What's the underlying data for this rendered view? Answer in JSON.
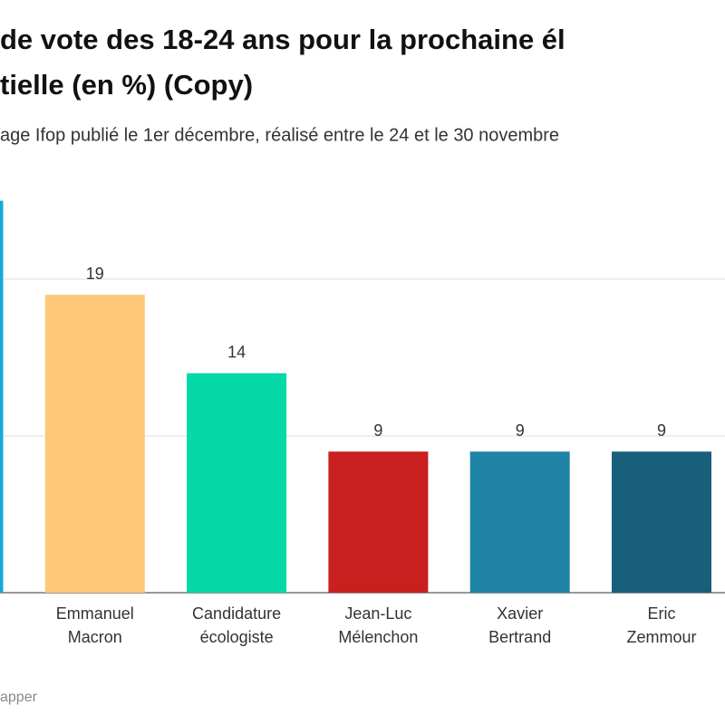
{
  "chart_data": {
    "type": "bar",
    "title_lines": [
      "de vote des 18-24 ans pour la prochaine él",
      "tielle (en %) (Copy)"
    ],
    "subtitle": "age Ifop publié le 1er décembre, réalisé entre le 24 et le 30 novembre",
    "source": "apper",
    "categories": [
      null,
      "Emmanuel Macron",
      "Candidature écologiste",
      "Jean-Luc Mélenchon",
      "Xavier Bertrand",
      "Eric Zemmour"
    ],
    "values": [
      25,
      19,
      14,
      9,
      9,
      9
    ],
    "colors": [
      "#17a8d8",
      "#fdc877",
      "#04d9a7",
      "#c91f1f",
      "#1f84a5",
      "#185f7b"
    ],
    "ylim": [
      0,
      25
    ],
    "yticks": [
      0,
      10,
      20
    ],
    "grid": true
  }
}
